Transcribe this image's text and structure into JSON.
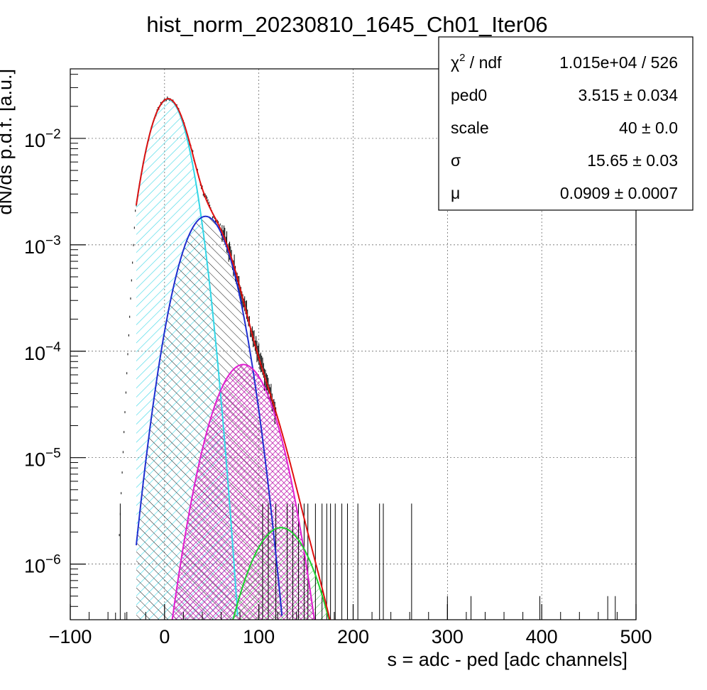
{
  "chart_data": {
    "type": "histogram",
    "title": "hist_norm_20230810_1645_Ch01_Iter06",
    "xlabel": "s = adc - ped [adc channels]",
    "ylabel": "dN/ds p.d.f. [a.u.]",
    "xlim": [
      -100,
      500
    ],
    "ylim": [
      3e-07,
      0.045
    ],
    "yscale": "log",
    "grid": true,
    "x_ticks": [
      {
        "value": -100,
        "label": "−100"
      },
      {
        "value": 0,
        "label": "0"
      },
      {
        "value": 100,
        "label": "100"
      },
      {
        "value": 200,
        "label": "200"
      },
      {
        "value": 300,
        "label": "300"
      },
      {
        "value": 400,
        "label": "400"
      },
      {
        "value": 500,
        "label": "500"
      }
    ],
    "y_ticks": [
      {
        "value": 1e-06,
        "base": "10",
        "exp": "−6"
      },
      {
        "value": 1e-05,
        "base": "10",
        "exp": "−5"
      },
      {
        "value": 0.0001,
        "base": "10",
        "exp": "−4"
      },
      {
        "value": 0.001,
        "base": "10",
        "exp": "−3"
      },
      {
        "value": 0.01,
        "base": "10",
        "exp": "−2"
      }
    ],
    "stats_box": {
      "rows": [
        {
          "label_main": "χ",
          "label_sup": "2",
          "label_rest": " / ndf",
          "value": "1.015e+04 / 526"
        },
        {
          "label_main": "ped0",
          "label_sup": "",
          "label_rest": "",
          "value": "3.515 ± 0.034"
        },
        {
          "label_main": "scale",
          "label_sup": "",
          "label_rest": "",
          "value": "40 ± 0.0"
        },
        {
          "label_main": "σ",
          "label_sup": "",
          "label_rest": "",
          "value": "15.65 ± 0.03"
        },
        {
          "label_main": "μ",
          "label_sup": "",
          "label_rest": "",
          "value": "0.0909 ± 0.0007"
        }
      ]
    },
    "fit_model": {
      "ped0": 3.515,
      "scale": 40,
      "sigma": 15.65,
      "mu": 0.0909,
      "lower_limit": -30
    },
    "components": [
      {
        "n": 0,
        "color": "#33d6e6",
        "peak_x": 3.5,
        "peak_y": 0.0233
      },
      {
        "n": 1,
        "color": "#1f2fd0",
        "peak_x": 43.5,
        "peak_y": 0.00185
      },
      {
        "n": 2,
        "color": "#e01fd0",
        "peak_x": 83.5,
        "peak_y": 7.5e-05
      },
      {
        "n": 3,
        "color": "#1fd02f",
        "peak_x": 123.5,
        "peak_y": 2.2e-06
      }
    ],
    "total_fit_color": "#e01010",
    "histogram_color": "#000000",
    "sparse_tail_counts": [
      [
        -52,
        3.5e-07
      ],
      [
        -47,
        3.7e-06
      ],
      [
        -42,
        3.5e-07
      ],
      [
        104,
        3.7e-06
      ],
      [
        110,
        3.7e-06
      ],
      [
        118,
        3.7e-06
      ],
      [
        130,
        3.7e-06
      ],
      [
        136,
        3.7e-06
      ],
      [
        142,
        3.7e-06
      ],
      [
        148,
        3.7e-06
      ],
      [
        152,
        3.7e-06
      ],
      [
        160,
        3.7e-06
      ],
      [
        167,
        3.7e-06
      ],
      [
        172,
        3.7e-06
      ],
      [
        176,
        3.7e-06
      ],
      [
        181,
        3.7e-06
      ],
      [
        188,
        3.7e-06
      ],
      [
        194,
        3.7e-06
      ],
      [
        205,
        3.7e-06
      ],
      [
        228,
        3.7e-06
      ],
      [
        232,
        3.7e-06
      ],
      [
        262,
        3.7e-06
      ],
      [
        300,
        5e-07
      ],
      [
        325,
        5e-07
      ],
      [
        398,
        5e-07
      ],
      [
        470,
        5e-07
      ],
      [
        478,
        5e-07
      ]
    ]
  }
}
